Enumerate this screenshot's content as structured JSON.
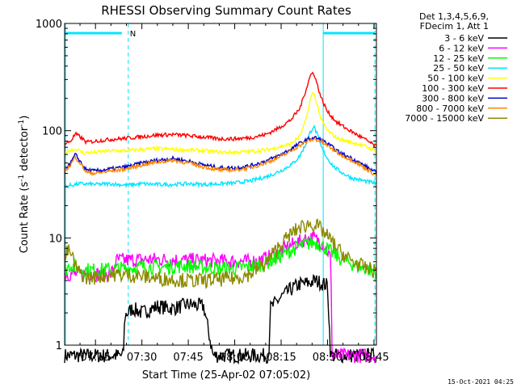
{
  "chart_data": {
    "type": "line",
    "title": "RHESSI Observing Summary Count Rates",
    "xlabel": "Start Time (25-Apr-02 07:05:02)",
    "ylabel_main": "Count Rate (s",
    "ylabel_sup1": "-1",
    "ylabel_mid": " detector",
    "ylabel_sup2": "-1",
    "ylabel_end": ")",
    "yscale": "log",
    "ylim": [
      1,
      1000
    ],
    "xlim_minutes": [
      65.03,
      165.8
    ],
    "x_ticks": [
      {
        "minute": 75,
        "label": "07:15"
      },
      {
        "minute": 90,
        "label": "07:30"
      },
      {
        "minute": 105,
        "label": "07:45"
      },
      {
        "minute": 120,
        "label": "08:00"
      },
      {
        "minute": 135,
        "label": "08:15"
      },
      {
        "minute": 150,
        "label": "08:30"
      },
      {
        "minute": 165,
        "label": "08:45"
      }
    ],
    "y_ticks": [
      {
        "value": 1,
        "label": "1"
      },
      {
        "value": 10,
        "label": "10"
      },
      {
        "value": 100,
        "label": "100"
      },
      {
        "value": 1000,
        "label": "1000"
      }
    ],
    "legend_header": [
      "Det 1,3,4,5,6,9,",
      "FDecim 1, Att 1"
    ],
    "legend_position": "right",
    "annotations": {
      "night_marker": "N",
      "timestamp": "15-Oct-2021 04:25"
    },
    "night_bar_minutes": [
      65.03,
      85.6
    ],
    "saa_bar_minutes": [
      148.6,
      165.3
    ],
    "vlines_solid_minutes": [
      65.3,
      148.6
    ],
    "vlines_dashed_minutes": [
      85.6,
      165.3
    ],
    "series": [
      {
        "name": "3 - 6 keV",
        "color": "#000000",
        "points": [
          [
            65,
            0.8
          ],
          [
            84,
            0.8
          ],
          [
            84.5,
            1.9
          ],
          [
            87,
            2.2
          ],
          [
            90,
            2.0
          ],
          [
            95,
            2.3
          ],
          [
            100,
            2.2
          ],
          [
            105,
            2.4
          ],
          [
            110,
            2.3
          ],
          [
            113,
            0.8
          ],
          [
            131,
            0.8
          ],
          [
            131.5,
            2.2
          ],
          [
            135,
            2.8
          ],
          [
            138,
            3.3
          ],
          [
            141,
            3.7
          ],
          [
            144,
            3.8
          ],
          [
            146,
            4.0
          ],
          [
            148,
            3.8
          ],
          [
            150,
            3.6
          ],
          [
            151,
            0.8
          ],
          [
            166,
            0.8
          ]
        ]
      },
      {
        "name": "6 - 12 keV",
        "color": "#ff00ff",
        "points": [
          [
            65,
            4.6
          ],
          [
            80,
            4.6
          ],
          [
            82,
            6.2
          ],
          [
            95,
            6.3
          ],
          [
            105,
            6.2
          ],
          [
            115,
            6.1
          ],
          [
            125,
            6.0
          ],
          [
            130,
            6.4
          ],
          [
            134,
            7.2
          ],
          [
            138,
            8.5
          ],
          [
            141,
            9.2
          ],
          [
            143,
            9.8
          ],
          [
            145,
            10.0
          ],
          [
            147,
            9.5
          ],
          [
            149,
            8.7
          ],
          [
            151,
            6.5
          ],
          [
            151.5,
            0.8
          ],
          [
            166,
            0.8
          ]
        ]
      },
      {
        "name": "12 - 25 keV",
        "color": "#00ff00",
        "points": [
          [
            65,
            5.0
          ],
          [
            67,
            5.6
          ],
          [
            70,
            5.1
          ],
          [
            75,
            5.0
          ],
          [
            80,
            5.1
          ],
          [
            85,
            5.2
          ],
          [
            90,
            5.4
          ],
          [
            95,
            5.3
          ],
          [
            100,
            5.4
          ],
          [
            105,
            5.5
          ],
          [
            110,
            5.3
          ],
          [
            115,
            5.2
          ],
          [
            120,
            5.2
          ],
          [
            125,
            5.4
          ],
          [
            130,
            5.8
          ],
          [
            134,
            6.6
          ],
          [
            138,
            7.6
          ],
          [
            141,
            8.4
          ],
          [
            144,
            8.9
          ],
          [
            146,
            9.1
          ],
          [
            148,
            8.6
          ],
          [
            151,
            7.4
          ],
          [
            155,
            6.2
          ],
          [
            160,
            5.4
          ],
          [
            166,
            4.8
          ]
        ]
      },
      {
        "name": "25 - 50 keV",
        "color": "#00e5ff",
        "points": [
          [
            65,
            30
          ],
          [
            67,
            31
          ],
          [
            70,
            32
          ],
          [
            75,
            31.5
          ],
          [
            80,
            32
          ],
          [
            85,
            31
          ],
          [
            90,
            32
          ],
          [
            95,
            31.5
          ],
          [
            100,
            31.5
          ],
          [
            105,
            32
          ],
          [
            110,
            31.5
          ],
          [
            115,
            32
          ],
          [
            120,
            32.5
          ],
          [
            125,
            34
          ],
          [
            130,
            37
          ],
          [
            133,
            40
          ],
          [
            136,
            44
          ],
          [
            139,
            50
          ],
          [
            141,
            58
          ],
          [
            143,
            75
          ],
          [
            144.5,
            98
          ],
          [
            145.5,
            110
          ],
          [
            146.5,
            95
          ],
          [
            148,
            70
          ],
          [
            150,
            55
          ],
          [
            152,
            46
          ],
          [
            155,
            40
          ],
          [
            158,
            36
          ],
          [
            162,
            34
          ],
          [
            166,
            32
          ]
        ]
      },
      {
        "name": "50 - 100 keV",
        "color": "#ffff00",
        "points": [
          [
            65,
            62
          ],
          [
            67,
            66
          ],
          [
            69,
            67
          ],
          [
            71,
            62
          ],
          [
            75,
            63
          ],
          [
            80,
            65
          ],
          [
            85,
            65
          ],
          [
            90,
            67
          ],
          [
            95,
            68
          ],
          [
            100,
            67
          ],
          [
            105,
            66
          ],
          [
            110,
            65
          ],
          [
            115,
            63
          ],
          [
            120,
            63
          ],
          [
            125,
            64
          ],
          [
            130,
            66
          ],
          [
            134,
            70
          ],
          [
            138,
            75
          ],
          [
            141,
            88
          ],
          [
            143,
            125
          ],
          [
            144.5,
            200
          ],
          [
            145.5,
            230
          ],
          [
            146.5,
            180
          ],
          [
            148,
            125
          ],
          [
            150,
            100
          ],
          [
            153,
            85
          ],
          [
            156,
            80
          ],
          [
            160,
            75
          ],
          [
            163,
            70
          ],
          [
            166,
            64
          ]
        ]
      },
      {
        "name": "100 - 300 keV",
        "color": "#ff0000",
        "points": [
          [
            65,
            75
          ],
          [
            67,
            80
          ],
          [
            68.5,
            93
          ],
          [
            70,
            88
          ],
          [
            72,
            78
          ],
          [
            75,
            80
          ],
          [
            80,
            83
          ],
          [
            85,
            85
          ],
          [
            90,
            88
          ],
          [
            95,
            91
          ],
          [
            100,
            92
          ],
          [
            105,
            90
          ],
          [
            110,
            87
          ],
          [
            115,
            84
          ],
          [
            120,
            84
          ],
          [
            125,
            86
          ],
          [
            130,
            92
          ],
          [
            134,
            105
          ],
          [
            138,
            125
          ],
          [
            141,
            160
          ],
          [
            143,
            240
          ],
          [
            144.5,
            330
          ],
          [
            145.5,
            350
          ],
          [
            146.5,
            280
          ],
          [
            148,
            200
          ],
          [
            150,
            150
          ],
          [
            153,
            120
          ],
          [
            156,
            105
          ],
          [
            160,
            90
          ],
          [
            163,
            80
          ],
          [
            166,
            70
          ]
        ]
      },
      {
        "name": "300 - 800 keV",
        "color": "#0000cc",
        "points": [
          [
            65,
            44
          ],
          [
            67,
            50
          ],
          [
            68.5,
            60
          ],
          [
            70,
            52
          ],
          [
            72,
            43
          ],
          [
            75,
            42
          ],
          [
            80,
            44
          ],
          [
            85,
            46
          ],
          [
            90,
            50
          ],
          [
            95,
            53
          ],
          [
            100,
            55
          ],
          [
            105,
            52
          ],
          [
            110,
            48
          ],
          [
            115,
            45
          ],
          [
            120,
            45
          ],
          [
            125,
            47
          ],
          [
            130,
            52
          ],
          [
            134,
            58
          ],
          [
            138,
            67
          ],
          [
            141,
            76
          ],
          [
            144,
            84
          ],
          [
            146,
            86
          ],
          [
            148,
            82
          ],
          [
            151,
            72
          ],
          [
            154,
            62
          ],
          [
            158,
            55
          ],
          [
            162,
            47
          ],
          [
            166,
            40
          ]
        ]
      },
      {
        "name": "800 - 7000 keV",
        "color": "#ff8800",
        "points": [
          [
            65,
            42
          ],
          [
            67,
            48
          ],
          [
            68.5,
            57
          ],
          [
            70,
            50
          ],
          [
            72,
            41
          ],
          [
            75,
            40
          ],
          [
            80,
            42
          ],
          [
            85,
            44
          ],
          [
            90,
            48
          ],
          [
            95,
            51
          ],
          [
            100,
            53
          ],
          [
            105,
            50
          ],
          [
            110,
            46
          ],
          [
            115,
            43
          ],
          [
            120,
            43
          ],
          [
            125,
            45
          ],
          [
            130,
            50
          ],
          [
            134,
            56
          ],
          [
            138,
            64
          ],
          [
            141,
            73
          ],
          [
            144,
            81
          ],
          [
            146,
            83
          ],
          [
            148,
            79
          ],
          [
            151,
            69
          ],
          [
            154,
            60
          ],
          [
            158,
            53
          ],
          [
            162,
            45
          ],
          [
            166,
            38
          ]
        ]
      },
      {
        "name": "7000 - 15000 keV",
        "color": "#8b8b00",
        "points": [
          [
            65,
            6.2
          ],
          [
            66,
            7.6
          ],
          [
            67,
            7.2
          ],
          [
            69,
            5.0
          ],
          [
            72,
            4.2
          ],
          [
            75,
            4.3
          ],
          [
            80,
            4.6
          ],
          [
            85,
            4.5
          ],
          [
            90,
            4.4
          ],
          [
            95,
            4.2
          ],
          [
            100,
            4.1
          ],
          [
            105,
            4.0
          ],
          [
            110,
            4.0
          ],
          [
            115,
            4.1
          ],
          [
            120,
            4.2
          ],
          [
            125,
            4.6
          ],
          [
            130,
            5.8
          ],
          [
            134,
            8.2
          ],
          [
            138,
            10.8
          ],
          [
            141,
            12.5
          ],
          [
            144,
            13.5
          ],
          [
            146,
            13.2
          ],
          [
            148,
            12.0
          ],
          [
            151,
            9.5
          ],
          [
            154,
            7.5
          ],
          [
            158,
            6.0
          ],
          [
            162,
            5.3
          ],
          [
            166,
            4.8
          ]
        ]
      }
    ]
  }
}
